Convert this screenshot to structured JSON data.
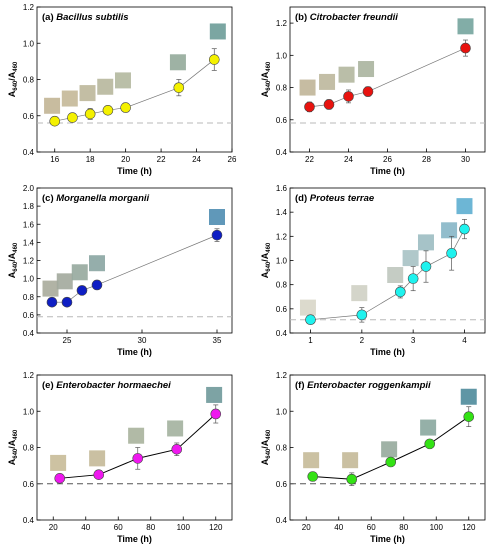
{
  "chart_data": [
    {
      "type": "scatter",
      "label": "(a)",
      "title": "Bacillus subtilis",
      "xlabel": "Time (h)",
      "ylabel_main": "A",
      "ylabel_sub1": "640",
      "ylabel_sub2": "460",
      "xlim": [
        15,
        26
      ],
      "ylim": [
        0.4,
        1.2
      ],
      "xticks": [
        16,
        18,
        20,
        22,
        24,
        26
      ],
      "yticks": [
        0.4,
        0.6,
        0.8,
        1.0,
        1.2
      ],
      "ytick_labels": [
        "0.4",
        "0.6",
        "0.8",
        "1.0",
        "1.2"
      ],
      "baseline": 0.56,
      "marker_color": "#f4f100",
      "connected": true,
      "x": [
        16,
        17,
        18,
        19,
        20,
        23,
        25
      ],
      "y": [
        0.57,
        0.59,
        0.61,
        0.63,
        0.645,
        0.755,
        0.91
      ],
      "yerr": [
        0.02,
        0.02,
        0.03,
        0.02,
        0.025,
        0.045,
        0.06
      ],
      "swatches": [
        {
          "x": 15.85,
          "y": 0.655,
          "color": "#c2b595"
        },
        {
          "x": 16.85,
          "y": 0.695,
          "color": "#c4b898"
        },
        {
          "x": 17.85,
          "y": 0.725,
          "color": "#bdb79a"
        },
        {
          "x": 18.85,
          "y": 0.76,
          "color": "#b7b79c"
        },
        {
          "x": 19.85,
          "y": 0.795,
          "color": "#b3b89f"
        },
        {
          "x": 22.95,
          "y": 0.895,
          "color": "#94aa9a"
        },
        {
          "x": 25.2,
          "y": 1.065,
          "color": "#6d9c98"
        }
      ]
    },
    {
      "type": "scatter",
      "label": "(b)",
      "title": "Citrobacter freundii",
      "xlabel": "Time (h)",
      "ylabel_main": "A",
      "ylabel_sub1": "640",
      "ylabel_sub2": "460",
      "xlim": [
        21,
        31
      ],
      "ylim": [
        0.4,
        1.3
      ],
      "xticks": [
        22,
        24,
        26,
        28,
        30
      ],
      "yticks": [
        0.4,
        0.6,
        0.8,
        1.0,
        1.2
      ],
      "ytick_labels": [
        "0.4",
        "0.6",
        "0.8",
        "1.0",
        "1.2"
      ],
      "baseline": 0.58,
      "marker_color": "#e8130f",
      "connected": true,
      "x": [
        22,
        23,
        24,
        25,
        30
      ],
      "y": [
        0.68,
        0.695,
        0.745,
        0.775,
        1.045
      ],
      "yerr": [
        0.03,
        0.03,
        0.04,
        0.03,
        0.05
      ],
      "swatches": [
        {
          "x": 21.9,
          "y": 0.8,
          "color": "#c0b598"
        },
        {
          "x": 22.9,
          "y": 0.835,
          "color": "#bcb79c"
        },
        {
          "x": 23.9,
          "y": 0.88,
          "color": "#b3b79f"
        },
        {
          "x": 24.9,
          "y": 0.915,
          "color": "#aab49f"
        },
        {
          "x": 30,
          "y": 1.18,
          "color": "#74a49d"
        }
      ]
    },
    {
      "type": "scatter",
      "label": "(c)",
      "title": "Morganella morganii",
      "xlabel": "Time (h)",
      "ylabel_main": "A",
      "ylabel_sub1": "640",
      "ylabel_sub2": "460",
      "xlim": [
        23,
        36
      ],
      "ylim": [
        0.4,
        2.0
      ],
      "xticks": [
        25,
        30,
        35
      ],
      "yticks": [
        0.4,
        0.6,
        0.8,
        1.0,
        1.2,
        1.4,
        1.6,
        1.8,
        2.0
      ],
      "ytick_labels": [
        "0.4",
        "0.6",
        "0.8",
        "1.0",
        "1.2",
        "1.4",
        "1.6",
        "1.8",
        "2.0"
      ],
      "baseline": 0.58,
      "marker_color": "#0f1fc4",
      "connected": true,
      "x": [
        24,
        25,
        26,
        27,
        35
      ],
      "y": [
        0.74,
        0.74,
        0.87,
        0.93,
        1.48
      ],
      "yerr": [
        0.03,
        0.03,
        0.04,
        0.05,
        0.07
      ],
      "swatches": [
        {
          "x": 23.9,
          "y": 0.89,
          "color": "#a8ab9b"
        },
        {
          "x": 24.85,
          "y": 0.97,
          "color": "#a2a99c"
        },
        {
          "x": 25.85,
          "y": 1.07,
          "color": "#96a89d"
        },
        {
          "x": 27,
          "y": 1.17,
          "color": "#89a5a2"
        },
        {
          "x": 35,
          "y": 1.68,
          "color": "#4f8db1"
        }
      ]
    },
    {
      "type": "scatter",
      "label": "(d)",
      "title": "Proteus terrae",
      "xlabel": "Time (h)",
      "ylabel_main": "A",
      "ylabel_sub1": "640",
      "ylabel_sub2": "460",
      "xlim": [
        0.6,
        4.4
      ],
      "ylim": [
        0.4,
        1.6
      ],
      "xticks": [
        1,
        2,
        3,
        4
      ],
      "yticks": [
        0.4,
        0.6,
        0.8,
        1.0,
        1.2,
        1.4,
        1.6
      ],
      "ytick_labels": [
        "0.4",
        "0.6",
        "0.8",
        "1.0",
        "1.2",
        "1.4",
        "1.6"
      ],
      "baseline": 0.51,
      "marker_color": "#1ff2ee",
      "connected": true,
      "x": [
        1,
        2,
        2.75,
        3,
        3.25,
        3.75,
        4
      ],
      "y": [
        0.51,
        0.55,
        0.74,
        0.85,
        0.95,
        1.06,
        1.26
      ],
      "yerr": [
        0.02,
        0.06,
        0.05,
        0.1,
        0.13,
        0.14,
        0.08
      ],
      "swatches": [
        {
          "x": 0.95,
          "y": 0.61,
          "color": "#d8d6c8"
        },
        {
          "x": 1.95,
          "y": 0.73,
          "color": "#cfd0c4"
        },
        {
          "x": 2.65,
          "y": 0.88,
          "color": "#bfc7be"
        },
        {
          "x": 2.95,
          "y": 1.02,
          "color": "#a7c2c4"
        },
        {
          "x": 3.25,
          "y": 1.15,
          "color": "#9cbcc2"
        },
        {
          "x": 3.7,
          "y": 1.25,
          "color": "#86b6c7"
        },
        {
          "x": 4.0,
          "y": 1.45,
          "color": "#5daed0"
        }
      ]
    },
    {
      "type": "scatter",
      "label": "(e)",
      "title": "Enterobacter hormaechei",
      "xlabel": "Time (h)",
      "ylabel_main": "A",
      "ylabel_sub1": "640",
      "ylabel_sub2": "460",
      "xlim": [
        10,
        130
      ],
      "ylim": [
        0.4,
        1.2
      ],
      "xticks": [
        20,
        40,
        60,
        80,
        100,
        120
      ],
      "yticks": [
        0.4,
        0.6,
        0.8,
        1.0,
        1.2
      ],
      "ytick_labels": [
        "0.4",
        "0.6",
        "0.8",
        "1.0",
        "1.2"
      ],
      "baseline": 0.6,
      "marker_color": "#ef18ef",
      "connected": true,
      "x": [
        24,
        48,
        72,
        96,
        120
      ],
      "y": [
        0.63,
        0.65,
        0.74,
        0.79,
        0.985
      ],
      "yerr": [
        0.02,
        0.02,
        0.06,
        0.035,
        0.05
      ],
      "swatches": [
        {
          "x": 23,
          "y": 0.715,
          "color": "#c8bb98"
        },
        {
          "x": 47,
          "y": 0.74,
          "color": "#c4b998"
        },
        {
          "x": 71,
          "y": 0.865,
          "color": "#a9b39c"
        },
        {
          "x": 95,
          "y": 0.905,
          "color": "#a3b19e"
        },
        {
          "x": 119,
          "y": 1.09,
          "color": "#6f999a"
        }
      ]
    },
    {
      "type": "scatter",
      "label": "(f)",
      "title": "Enterobacter roggenkampii",
      "xlabel": "Time (h)",
      "ylabel_main": "A",
      "ylabel_sub1": "640",
      "ylabel_sub2": "460",
      "xlim": [
        10,
        130
      ],
      "ylim": [
        0.4,
        1.2
      ],
      "xticks": [
        20,
        40,
        60,
        80,
        100,
        120
      ],
      "yticks": [
        0.4,
        0.6,
        0.8,
        1.0,
        1.2
      ],
      "ytick_labels": [
        "0.4",
        "0.6",
        "0.8",
        "1.0",
        "1.2"
      ],
      "baseline": 0.6,
      "marker_color": "#33e214",
      "connected": true,
      "x": [
        24,
        48,
        72,
        96,
        120
      ],
      "y": [
        0.64,
        0.625,
        0.72,
        0.82,
        0.97
      ],
      "yerr": [
        0.02,
        0.035,
        0.02,
        0.02,
        0.055
      ],
      "swatches": [
        {
          "x": 23,
          "y": 0.73,
          "color": "#c5ba98"
        },
        {
          "x": 47,
          "y": 0.73,
          "color": "#c4b998"
        },
        {
          "x": 71,
          "y": 0.79,
          "color": "#96aa9c"
        },
        {
          "x": 95,
          "y": 0.91,
          "color": "#8aa79e"
        },
        {
          "x": 120,
          "y": 1.08,
          "color": "#4e8b9b"
        }
      ]
    }
  ]
}
